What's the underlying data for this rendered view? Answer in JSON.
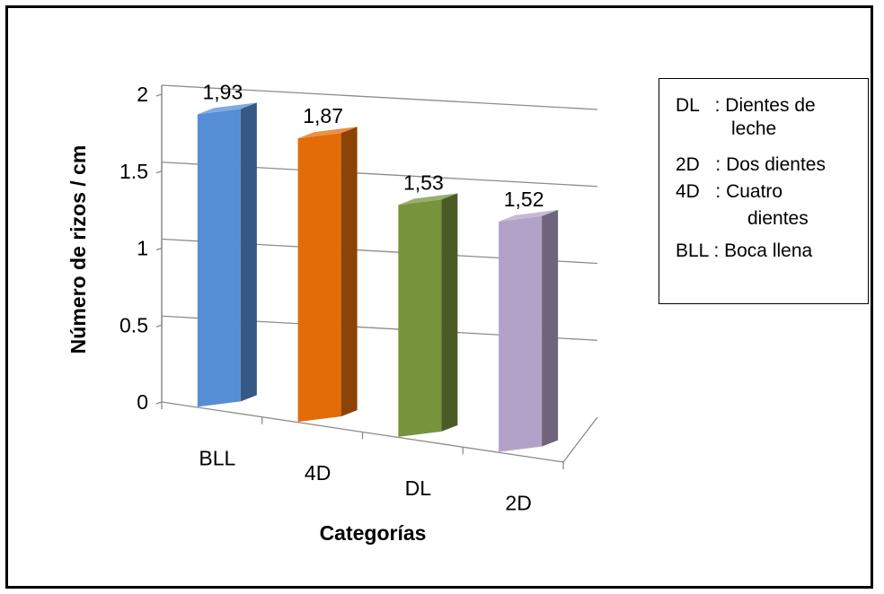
{
  "chart_data": {
    "type": "bar",
    "categories": [
      "BLL",
      "4D",
      "DL",
      "2D"
    ],
    "values": [
      1.93,
      1.87,
      1.53,
      1.52
    ],
    "value_labels": [
      "1,93",
      "1,87",
      "1,53",
      "1,52"
    ],
    "xlabel": "Categorías",
    "ylabel": "Número de rizos / cm",
    "ylim": [
      0,
      2
    ],
    "yticks": [
      "0",
      "0.5",
      "1",
      "1.5",
      "2"
    ],
    "grid": true,
    "three_d": true,
    "legend_placement": "right",
    "colors": [
      "#558ED5",
      "#E36C09",
      "#77933C",
      "#B3A2C7"
    ]
  },
  "legend": {
    "entries": [
      {
        "code": "DL",
        "sep": ":",
        "text": "Dientes de",
        "cont": "leche"
      },
      {
        "code": "2D",
        "sep": ":",
        "text": "Dos dientes"
      },
      {
        "code": "4D",
        "sep": ":",
        "text": "Cuatro",
        "cont": "dientes"
      },
      {
        "code": "BLL",
        "sep": ":",
        "text": "Boca llena"
      }
    ]
  }
}
